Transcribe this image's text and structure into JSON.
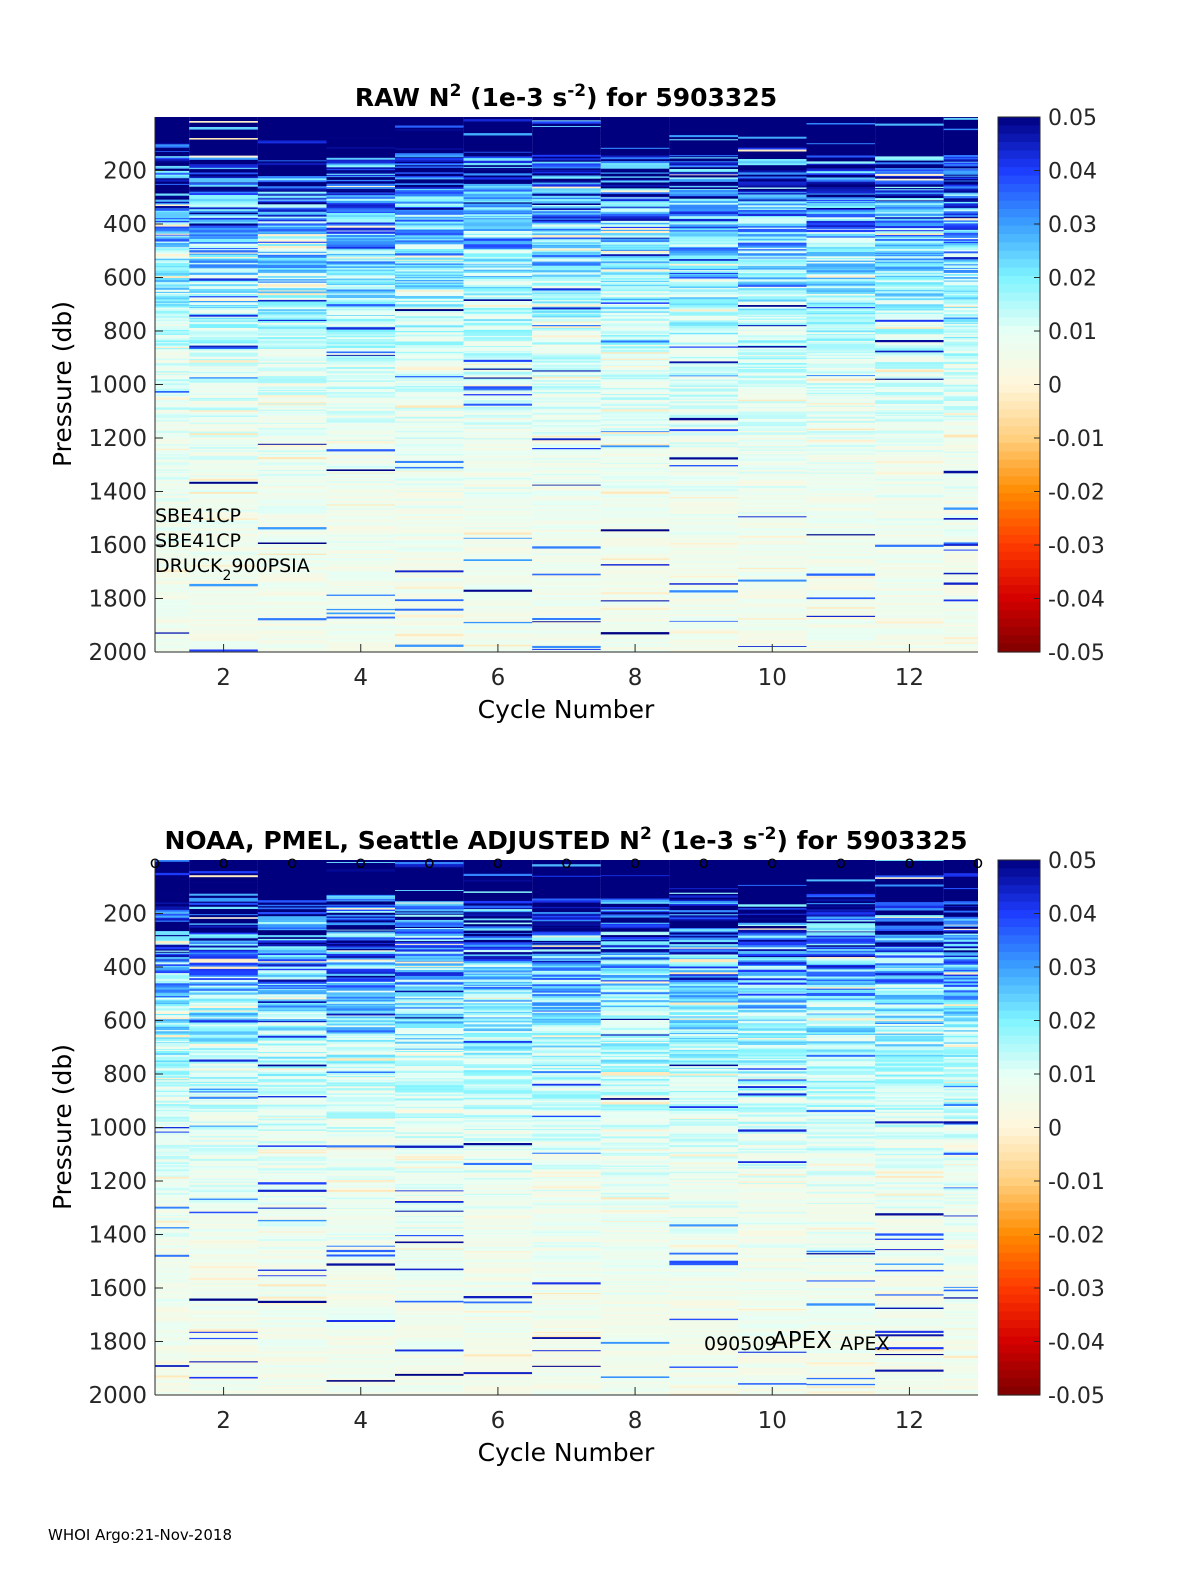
{
  "footer": "WHOI Argo:21-Nov-2018",
  "chart_data": [
    {
      "type": "heatmap",
      "title": "RAW N² (1e-3 s⁻²) for 5903325",
      "title_main": "RAW N",
      "title_sup1": "2",
      "title_mid": " (1e-3 s",
      "title_sup2": "-2",
      "title_end": ") for 5903325",
      "xlabel": "Cycle Number",
      "ylabel": "Pressure (db)",
      "xlim": [
        1,
        13
      ],
      "ylim": [
        0,
        2000
      ],
      "y_reversed": true,
      "xticks": [
        "2",
        "4",
        "6",
        "8",
        "10",
        "12"
      ],
      "yticks": [
        "200",
        "400",
        "600",
        "800",
        "1000",
        "1200",
        "1400",
        "1600",
        "1800",
        "2000"
      ],
      "colorbar": {
        "clim": [
          -0.05,
          0.05
        ],
        "ticks": [
          "0.05",
          "0.04",
          "0.03",
          "0.02",
          "0.01",
          "0",
          "-0.01",
          "-0.02",
          "-0.03",
          "-0.04",
          "-0.05"
        ],
        "colormap": [
          "#7f0000",
          "#d40000",
          "#ff3a00",
          "#ff8c00",
          "#ffd080",
          "#fff6dc",
          "#e6fff6",
          "#7ff4ff",
          "#3aa0ff",
          "#1e3cff",
          "#00007f"
        ]
      },
      "annotations": [
        {
          "text": "SBE41CP"
        },
        {
          "text": "SBE41CP"
        },
        {
          "text": "DRUCK",
          "sub": "2",
          "text_after": "900PSIA"
        }
      ],
      "cycles": [
        1,
        2,
        3,
        4,
        5,
        6,
        7,
        8,
        9,
        10,
        11,
        12,
        13
      ]
    },
    {
      "type": "heatmap",
      "title": "NOAA, PMEL, Seattle  ADJUSTED N² (1e-3 s⁻²) for 5903325",
      "title_main": "NOAA, PMEL, Seattle  ADJUSTED N",
      "title_sup1": "2",
      "title_mid": " (1e-3 s",
      "title_sup2": "-2",
      "title_end": ") for 5903325",
      "xlabel": "Cycle Number",
      "ylabel": "Pressure (db)",
      "xlim": [
        1,
        13
      ],
      "ylim": [
        0,
        2000
      ],
      "y_reversed": true,
      "xticks": [
        "2",
        "4",
        "6",
        "8",
        "10",
        "12"
      ],
      "yticks": [
        "200",
        "400",
        "600",
        "800",
        "1000",
        "1200",
        "1400",
        "1600",
        "1800",
        "2000"
      ],
      "colorbar": {
        "clim": [
          -0.05,
          0.05
        ],
        "ticks": [
          "0.05",
          "0.04",
          "0.03",
          "0.02",
          "0.01",
          "0",
          "-0.01",
          "-0.02",
          "-0.03",
          "-0.04",
          "-0.05"
        ],
        "colormap": [
          "#7f0000",
          "#d40000",
          "#ff3a00",
          "#ff8c00",
          "#ffd080",
          "#fff6dc",
          "#e6fff6",
          "#7ff4ff",
          "#3aa0ff",
          "#1e3cff",
          "#00007f"
        ]
      },
      "top_markers": {
        "symbol": "o",
        "x": [
          1,
          2,
          3,
          4,
          5,
          6,
          7,
          8,
          9,
          10,
          11,
          12,
          13
        ]
      },
      "annotations": [
        {
          "text": "090509"
        },
        {
          "text": "APEX"
        },
        {
          "text": "APEX"
        }
      ],
      "cycles": [
        1,
        2,
        3,
        4,
        5,
        6,
        7,
        8,
        9,
        10,
        11,
        12,
        13
      ]
    }
  ]
}
